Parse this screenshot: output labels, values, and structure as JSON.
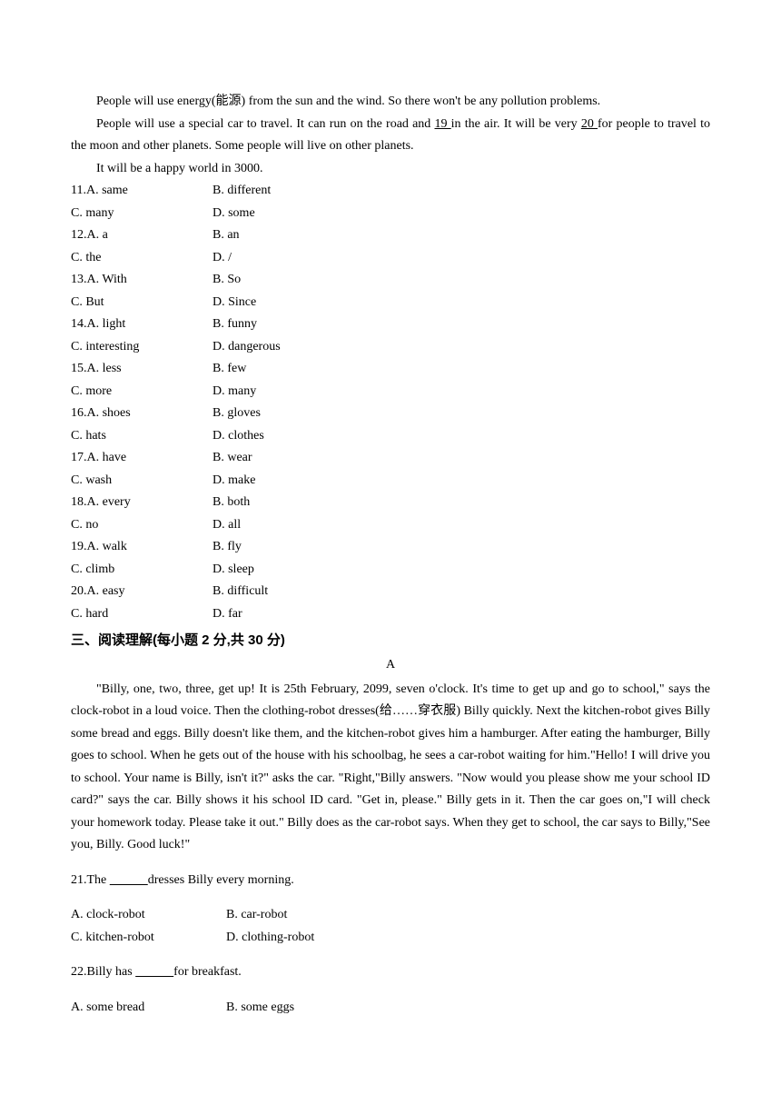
{
  "passage1": {
    "p1": "People will use energy(能源) from the sun and the wind. So there won't be any pollution problems.",
    "p2a": "People will use a special car to travel. It can run on the road and ",
    "blank19": "  19  ",
    "p2b": " in the air. It will be very ",
    "blank20": "  20  ",
    "p2c": " for people to travel to the moon and other planets. Some people will live on other planets.",
    "p3": "It will be a happy world in 3000."
  },
  "cloze": [
    {
      "n": "11.",
      "a": "A. same",
      "b": "B. different",
      "c": "C. many",
      "d": "D. some"
    },
    {
      "n": "12.",
      "a": "A. a",
      "b": "B. an",
      "c": "C. the",
      "d": "D. /"
    },
    {
      "n": "13.",
      "a": "A. With",
      "b": "B. So",
      "c": "C. But",
      "d": "D. Since"
    },
    {
      "n": "14.",
      "a": "A. light",
      "b": "B. funny",
      "c": "C. interesting",
      "d": "D. dangerous"
    },
    {
      "n": "15.",
      "a": "A. less",
      "b": "B. few",
      "c": "C. more",
      "d": "D. many"
    },
    {
      "n": "16.",
      "a": "A. shoes",
      "b": "B. gloves",
      "c": "C. hats",
      "d": "D. clothes"
    },
    {
      "n": "17.",
      "a": "A. have",
      "b": "B. wear",
      "c": "C. wash",
      "d": "D. make"
    },
    {
      "n": "18.",
      "a": "A. every",
      "b": "B. both",
      "c": "C. no",
      "d": "D. all"
    },
    {
      "n": "19.",
      "a": "A. walk",
      "b": "B. fly",
      "c": "C. climb",
      "d": "D. sleep"
    },
    {
      "n": "20.",
      "a": "A. easy",
      "b": "B. difficult",
      "c": "C. hard",
      "d": "D. far"
    }
  ],
  "section3": "三、阅读理解(每小题 2 分,共 30 分)",
  "letterA": "A",
  "passage2": "\"Billy, one, two, three, get up! It is 25th February, 2099, seven o'clock. It's time to get up and go to school,\" says the clock-robot in a loud voice. Then the clothing-robot dresses(给……穿衣服) Billy quickly. Next the kitchen-robot gives Billy some bread and eggs. Billy doesn't like them, and the kitchen-robot gives him a hamburger. After eating the hamburger, Billy goes to school. When he gets out of the house with his schoolbag, he sees a car-robot waiting for him.\"Hello! I will drive you to school. Your name is Billy, isn't it?\" asks the car. \"Right,\"Billy answers. \"Now would you please show me your school ID card?\" says the car. Billy shows it his school ID card. \"Get in, please.\" Billy gets in it. Then the car goes on,\"I will check your homework today. Please take it out.\" Billy does as the car-robot says. When they get to school, the car says to Billy,\"See you, Billy. Good luck!\"",
  "q21": {
    "stem_a": "21.The ",
    "blank": "　　　",
    "stem_b": "dresses Billy every morning.",
    "a": "A. clock-robot",
    "b": "B. car-robot",
    "c": "C. kitchen-robot",
    "d": "D. clothing-robot"
  },
  "q22": {
    "stem_a": "22.Billy has ",
    "blank": "　　　",
    "stem_b": "for breakfast.",
    "a": "A. some bread",
    "b": "B. some eggs"
  }
}
